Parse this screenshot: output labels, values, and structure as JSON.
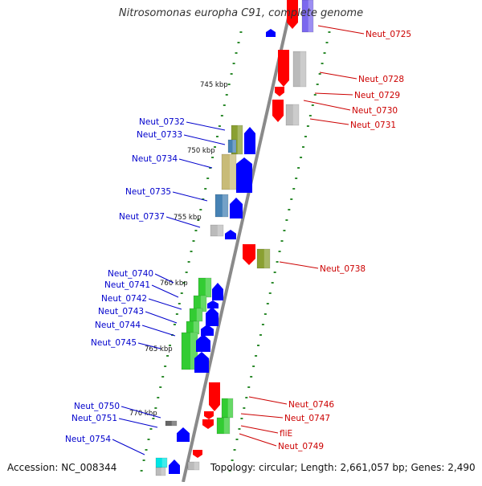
{
  "title": "Nitrosomonas europha C91, complete genome",
  "footer": {
    "accession": "Accession: NC_008344",
    "summary": "Topology: circular; Length: 2,661,057 bp; Genes: 2,490"
  },
  "colors": {
    "backbone": "#8a8a8a",
    "tick": "#2e8b2e",
    "label_left": "#0000cc",
    "label_right": "#cc0000",
    "gene_blue": "#0000ff",
    "gene_red": "#ff0000",
    "gene_olive": "#8aa032",
    "gene_khaki": "#c8bb78",
    "gene_steel": "#4682b4",
    "gene_green": "#33cc33",
    "gene_grey": "#bbbbbb",
    "gene_cyan": "#00e5e5",
    "gene_purple": "#7b68ee"
  },
  "kbp_marks": [
    "745 kbp",
    "750 kbp",
    "755 kbp",
    "760 kbp",
    "765 kbp",
    "770 kbp"
  ],
  "left_labels": [
    "Neut_0732",
    "Neut_0733",
    "Neut_0734",
    "Neut_0735",
    "Neut_0737",
    "Neut_0740",
    "Neut_0741",
    "Neut_0742",
    "Neut_0743",
    "Neut_0744",
    "Neut_0745",
    "Neut_0750",
    "Neut_0751",
    "Neut_0754"
  ],
  "right_labels": [
    "Neut_0725",
    "Neut_0728",
    "Neut_0729",
    "Neut_0730",
    "Neut_0731",
    "Neut_0738",
    "Neut_0746",
    "Neut_0747",
    "fliE",
    "Neut_0749"
  ]
}
